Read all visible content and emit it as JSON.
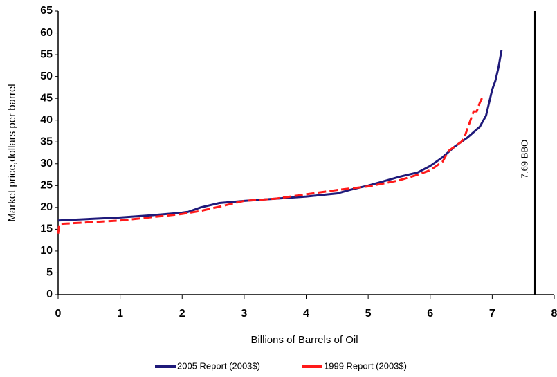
{
  "chart_data": {
    "type": "line",
    "x_label": "Billions of Barrels of Oil",
    "y_label": "Market price,dollars per barrel",
    "xlim": [
      0,
      8
    ],
    "xticks": [
      0,
      1,
      2,
      3,
      4,
      5,
      6,
      7,
      8
    ],
    "ylim": [
      0,
      65
    ],
    "yticks": [
      0,
      5,
      10,
      15,
      20,
      25,
      30,
      35,
      40,
      45,
      50,
      55,
      60,
      65
    ],
    "grid": false,
    "legend": "bottom",
    "annotations": [
      {
        "text": "7.69 BBO",
        "x": 7.69
      }
    ],
    "series": [
      {
        "name": "2005 Report (2003$)",
        "color": "#1f1a7a",
        "dash": false,
        "x": [
          0,
          1,
          1.5,
          2,
          2.1,
          2.3,
          2.6,
          3,
          3.5,
          4,
          4.5,
          4.7,
          5,
          5.5,
          5.8,
          6,
          6.2,
          6.4,
          6.6,
          6.8,
          6.9,
          6.95,
          7.0,
          7.05,
          7.1,
          7.15
        ],
        "values": [
          17,
          17.7,
          18.2,
          18.8,
          19,
          20,
          21,
          21.5,
          22,
          22.5,
          23.2,
          24,
          25,
          27,
          28,
          29.5,
          31.5,
          34,
          36,
          38.5,
          41,
          44,
          47,
          49,
          52,
          56
        ]
      },
      {
        "name": "1999 Report (2003$)",
        "color": "#ff1a1a",
        "dash": true,
        "x": [
          0,
          0.02,
          1,
          2,
          2.3,
          2.7,
          3,
          3.5,
          4,
          4.5,
          5,
          5.5,
          5.8,
          6,
          6.1,
          6.2,
          6.3,
          6.4,
          6.5,
          6.55,
          6.6,
          6.65,
          6.7,
          6.75,
          6.8,
          6.85
        ],
        "values": [
          14,
          16.2,
          17,
          18.5,
          19.2,
          20.5,
          21.5,
          22,
          23,
          24,
          24.8,
          26.2,
          27.5,
          28.5,
          29.5,
          30.5,
          33,
          34,
          35,
          36,
          38,
          40,
          42,
          42,
          44,
          45.5
        ]
      }
    ]
  }
}
